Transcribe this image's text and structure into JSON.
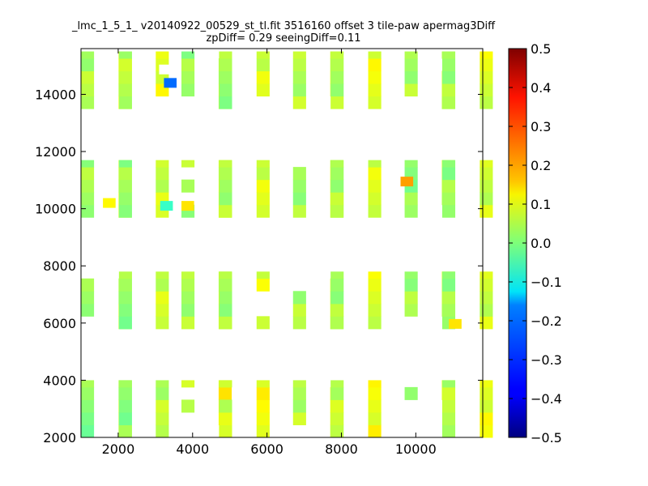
{
  "chart_data": {
    "type": "heatmap",
    "title": "_lmc_1_5_1_ v20140922_00529_st_tl.fit 3516160 offset 3 tile-paw apermag3Diff",
    "subtitle": "zpDiff= 0.29 seeingDiff=0.11",
    "xlabel": "",
    "ylabel": "",
    "xlim": [
      1000,
      11800
    ],
    "ylim": [
      2000,
      15600
    ],
    "xticks": [
      2000,
      4000,
      6000,
      8000,
      10000
    ],
    "yticks": [
      2000,
      4000,
      6000,
      8000,
      10000,
      12000,
      14000
    ],
    "cell_size": [
      340,
      440
    ],
    "colorbar": {
      "range": [
        -0.5,
        0.5
      ],
      "ticks": [
        -0.5,
        -0.4,
        -0.3,
        -0.2,
        -0.1,
        0.0,
        0.1,
        0.2,
        0.3,
        0.4,
        0.5
      ],
      "tick_labels": [
        "−0.5",
        "−0.4",
        "−0.3",
        "−0.2",
        "−0.1",
        "0.0",
        "0.1",
        "0.2",
        "0.3",
        "0.4",
        "0.5"
      ],
      "colormap": "jet"
    },
    "tiles": [
      {
        "xs": [
          1000,
          2010,
          2020,
          3010
        ],
        "ys": [
          2000,
          4000
        ]
      },
      {
        "xs": [
          3700,
          4700,
          4710,
          5720
        ],
        "ys": [
          2000,
          4000
        ]
      },
      {
        "xs": [
          6700,
          7700,
          7710,
          8720
        ],
        "ys": [
          2000,
          4000
        ]
      },
      {
        "xs": [
          9700,
          10700,
          10710,
          11720
        ],
        "ys": [
          2000,
          4000
        ]
      },
      {
        "xs": [
          1000,
          2010,
          2020,
          3010
        ],
        "ys": [
          5800,
          7800
        ]
      },
      {
        "xs": [
          3700,
          4700,
          4710,
          5720
        ],
        "ys": [
          5800,
          7800
        ]
      },
      {
        "xs": [
          6700,
          7700,
          7710,
          8720
        ],
        "ys": [
          5800,
          7800
        ]
      },
      {
        "xs": [
          9700,
          10700,
          10710,
          11720
        ],
        "ys": [
          5800,
          7800
        ]
      },
      {
        "xs": [
          1000,
          2010,
          2020,
          3010
        ],
        "ys": [
          9700,
          11700
        ]
      },
      {
        "xs": [
          3700,
          4700,
          4710,
          5720
        ],
        "ys": [
          9700,
          11700
        ]
      },
      {
        "xs": [
          6700,
          7700,
          7710,
          8720
        ],
        "ys": [
          9700,
          11700
        ]
      },
      {
        "xs": [
          9700,
          10700,
          10710,
          11720
        ],
        "ys": [
          9700,
          11700
        ]
      },
      {
        "xs": [
          1000,
          2010,
          2020,
          3010
        ],
        "ys": [
          13500,
          15500
        ]
      },
      {
        "xs": [
          3700,
          4700,
          4710,
          5720
        ],
        "ys": [
          13500,
          15500
        ]
      },
      {
        "xs": [
          6700,
          7700,
          7710,
          8720
        ],
        "ys": [
          13500,
          15500
        ]
      },
      {
        "xs": [
          9700,
          10700,
          10710,
          11720
        ],
        "ys": [
          13500,
          15500
        ]
      }
    ],
    "detector_values": [
      0.01,
      0.07,
      0.06,
      0.05,
      0.02,
      0.04,
      0.04,
      0.03,
      0.03,
      0.04,
      0.04,
      0.02,
      0.05,
      0.03,
      0.05,
      0.04
    ],
    "half_offsets": [
      0.0,
      0.05,
      0.0,
      0.05
    ],
    "holes": [
      {
        "tile": 1,
        "col": 0,
        "row": 0
      },
      {
        "tile": 1,
        "col": 0,
        "row": 1
      },
      {
        "tile": 1,
        "col": 0,
        "row": 3
      },
      {
        "tile": 1,
        "col": 1,
        "row": 0
      },
      {
        "tile": 1,
        "col": 2,
        "row": 3
      },
      {
        "tile": 2,
        "col": 0,
        "row": 0
      },
      {
        "tile": 2,
        "col": 1,
        "row": 4
      },
      {
        "tile": 3,
        "col": 0,
        "row": 0
      },
      {
        "tile": 3,
        "col": 0,
        "row": 1
      },
      {
        "tile": 3,
        "col": 0,
        "row": 2
      },
      {
        "tile": 3,
        "col": 0,
        "row": 4
      },
      {
        "tile": 3,
        "col": 1,
        "row": 0
      },
      {
        "tile": 3,
        "col": 1,
        "row": 1
      },
      {
        "tile": 3,
        "col": 1,
        "row": 2
      },
      {
        "tile": 4,
        "col": 0,
        "row": 0
      },
      {
        "tile": 4,
        "col": 0,
        "row": 4
      },
      {
        "tile": 4,
        "col": 1,
        "row": 4
      },
      {
        "tile": 5,
        "col": 3,
        "row": 1
      },
      {
        "tile": 5,
        "col": 3,
        "row": 2
      },
      {
        "tile": 6,
        "col": 0,
        "row": 3
      },
      {
        "tile": 6,
        "col": 0,
        "row": 4
      },
      {
        "tile": 6,
        "col": 1,
        "row": 4
      },
      {
        "tile": 7,
        "col": 0,
        "row": 0
      },
      {
        "tile": 7,
        "col": 1,
        "row": 0
      },
      {
        "tile": 9,
        "col": 0,
        "row": 1
      },
      {
        "tile": 9,
        "col": 0,
        "row": 3
      },
      {
        "tile": 10,
        "col": 0,
        "row": 4
      },
      {
        "tile": 11,
        "col": 1,
        "row": 0
      },
      {
        "tile": 12,
        "col": 3,
        "row": 0
      },
      {
        "tile": 13,
        "col": 0,
        "row": 0
      },
      {
        "tile": 13,
        "col": 1,
        "row": 4
      },
      {
        "tile": 13,
        "col": 3,
        "row": 0
      },
      {
        "tile": 14,
        "col": 1,
        "row": 0
      },
      {
        "tile": 15,
        "col": 0,
        "row": 0
      },
      {
        "tile": 15,
        "col": 1,
        "row": 3
      }
    ],
    "special_cells": [
      {
        "x": 3230,
        "y": 14230,
        "value": -0.27
      },
      {
        "x": 9590,
        "y": 10780,
        "value": 0.22
      },
      {
        "x": 1590,
        "y": 10030,
        "value": 0.13
      },
      {
        "x": 3700,
        "y": 9930,
        "value": 0.15
      },
      {
        "x": 3130,
        "y": 9930,
        "value": -0.07
      },
      {
        "x": 10890,
        "y": 5800,
        "value": 0.15
      },
      {
        "x": 3100,
        "y": 14700,
        "value": null
      }
    ]
  }
}
